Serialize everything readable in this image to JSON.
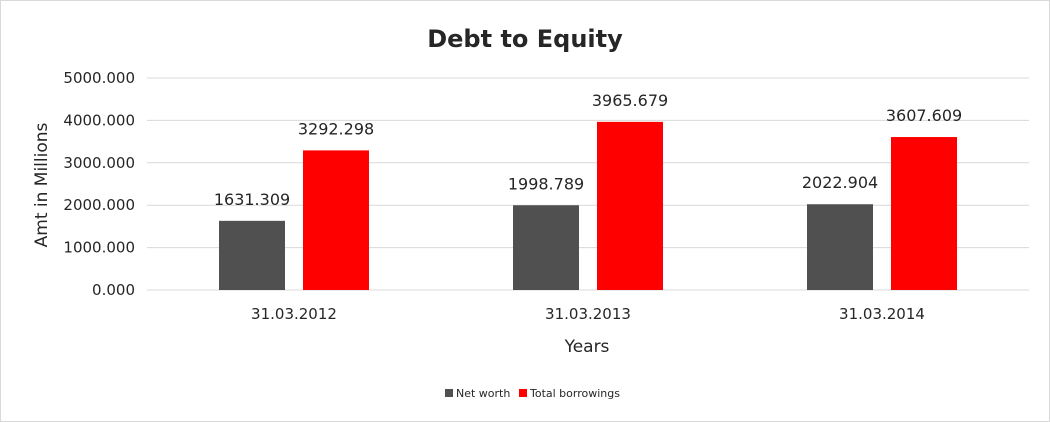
{
  "chart_data": {
    "type": "bar",
    "title": "Debt to Equity",
    "xlabel": "Years",
    "ylabel": "Amt in Millions",
    "categories": [
      "31.03.2012",
      "31.03.2013",
      "31.03.2014"
    ],
    "series": [
      {
        "name": "Net worth",
        "values": [
          1631.309,
          1998.789,
          2022.904
        ],
        "color": "#505050",
        "labels": [
          "1631.309",
          "1998.789",
          "2022.904"
        ]
      },
      {
        "name": "Total borrowings",
        "values": [
          3292.298,
          3965.679,
          3607.609
        ],
        "color": "#ff0000",
        "labels": [
          "3292.298",
          "3965.679",
          "3607.609"
        ]
      }
    ],
    "ylim": [
      0,
      5000
    ],
    "yticks": [
      "0.000",
      "1000.000",
      "2000.000",
      "3000.000",
      "4000.000",
      "5000.000"
    ],
    "grid": true,
    "legend_position": "bottom"
  }
}
